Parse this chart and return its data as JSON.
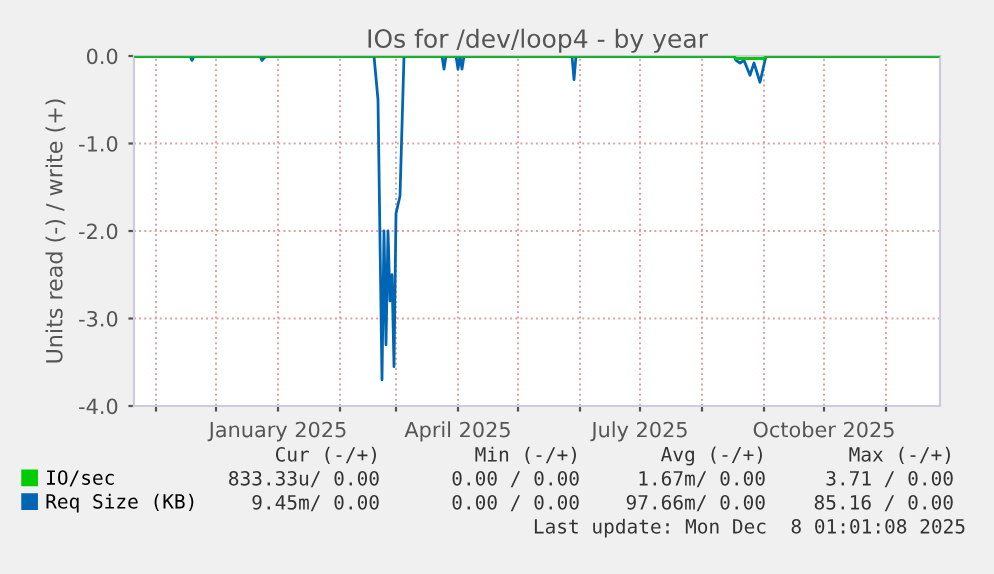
{
  "chart_data": {
    "type": "line",
    "title": "IOs for /dev/loop4 - by year",
    "ylabel": "Units read (-) / write (+)",
    "series": [
      {
        "name": "IO/sec",
        "color": "#00cc00",
        "x": [
          "2024-10-21",
          "2025-08-17",
          "2025-08-18",
          "2025-09-01",
          "2025-09-02",
          "2025-11-27"
        ],
        "values": [
          0,
          0,
          -0.03,
          -0.03,
          0,
          0
        ]
      },
      {
        "name": "Req Size (KB)",
        "color": "#0066b3",
        "x": [
          "2024-10-21",
          "2024-11-18",
          "2024-11-19",
          "2024-11-20",
          "2024-12-23",
          "2024-12-24",
          "2024-12-26",
          "2025-02-18",
          "2025-02-20",
          "2025-02-22",
          "2025-02-23",
          "2025-02-24",
          "2025-02-25",
          "2025-02-26",
          "2025-02-27",
          "2025-02-28",
          "2025-03-01",
          "2025-03-03",
          "2025-03-05",
          "2025-03-24",
          "2025-03-25",
          "2025-03-26",
          "2025-03-31",
          "2025-04-01",
          "2025-04-02",
          "2025-04-03",
          "2025-04-04",
          "2025-05-28",
          "2025-05-29",
          "2025-05-30",
          "2025-08-17",
          "2025-08-18",
          "2025-08-20",
          "2025-08-22",
          "2025-08-25",
          "2025-08-27",
          "2025-08-30",
          "2025-09-01",
          "2025-09-02",
          "2025-11-27"
        ],
        "values": [
          0,
          0,
          -0.05,
          0,
          0,
          -0.05,
          0,
          0,
          -0.5,
          -3.7,
          -2.0,
          -3.3,
          -2.0,
          -2.8,
          -2.5,
          -3.55,
          -1.8,
          -1.6,
          0,
          0,
          -0.15,
          0,
          0,
          -0.15,
          0,
          -0.15,
          0,
          0,
          -0.27,
          0,
          0,
          -0.05,
          -0.08,
          -0.05,
          -0.22,
          -0.08,
          -0.3,
          -0.1,
          0,
          0
        ]
      }
    ],
    "xlim": [
      "2024-10-21",
      "2025-11-28"
    ],
    "xticks": [
      {
        "value": "2024-11-01",
        "label": null
      },
      {
        "value": "2024-12-01",
        "label": null
      },
      {
        "value": "2025-01-01",
        "label": "January 2025"
      },
      {
        "value": "2025-02-01",
        "label": null
      },
      {
        "value": "2025-03-01",
        "label": null
      },
      {
        "value": "2025-04-01",
        "label": "April 2025"
      },
      {
        "value": "2025-05-01",
        "label": null
      },
      {
        "value": "2025-06-01",
        "label": null
      },
      {
        "value": "2025-07-01",
        "label": "July 2025"
      },
      {
        "value": "2025-08-01",
        "label": null
      },
      {
        "value": "2025-09-01",
        "label": null
      },
      {
        "value": "2025-10-01",
        "label": "October 2025"
      },
      {
        "value": "2025-11-01",
        "label": null
      }
    ],
    "ylim": [
      -4.0,
      0.0
    ],
    "yticks": [
      {
        "value": -4.0,
        "label": "-4.0"
      },
      {
        "value": -3.0,
        "label": "-3.0"
      },
      {
        "value": -2.0,
        "label": "-2.0"
      },
      {
        "value": -1.0,
        "label": "-1.0"
      },
      {
        "value": 0.0,
        "label": "0.0"
      }
    ],
    "ref_lines": [
      {
        "axis": "y",
        "value": 0.0,
        "color": "#000000"
      }
    ],
    "grid": true,
    "legend": "bottom",
    "marker": "none",
    "line_style": "solid",
    "annotations": [
      "Cur (-/+)",
      "Min (-/+)",
      "Avg (-/+)",
      "Max (-/+)",
      "833.33u/ 0.00",
      "0.00 / 0.00",
      "1.67m/ 0.00",
      "3.71 / 0.00",
      "9.45m/ 0.00",
      "0.00 / 0.00",
      "97.66m/ 0.00",
      "85.16 / 0.00",
      "Last update: Mon Dec  8 01:01:08 2025"
    ]
  }
}
